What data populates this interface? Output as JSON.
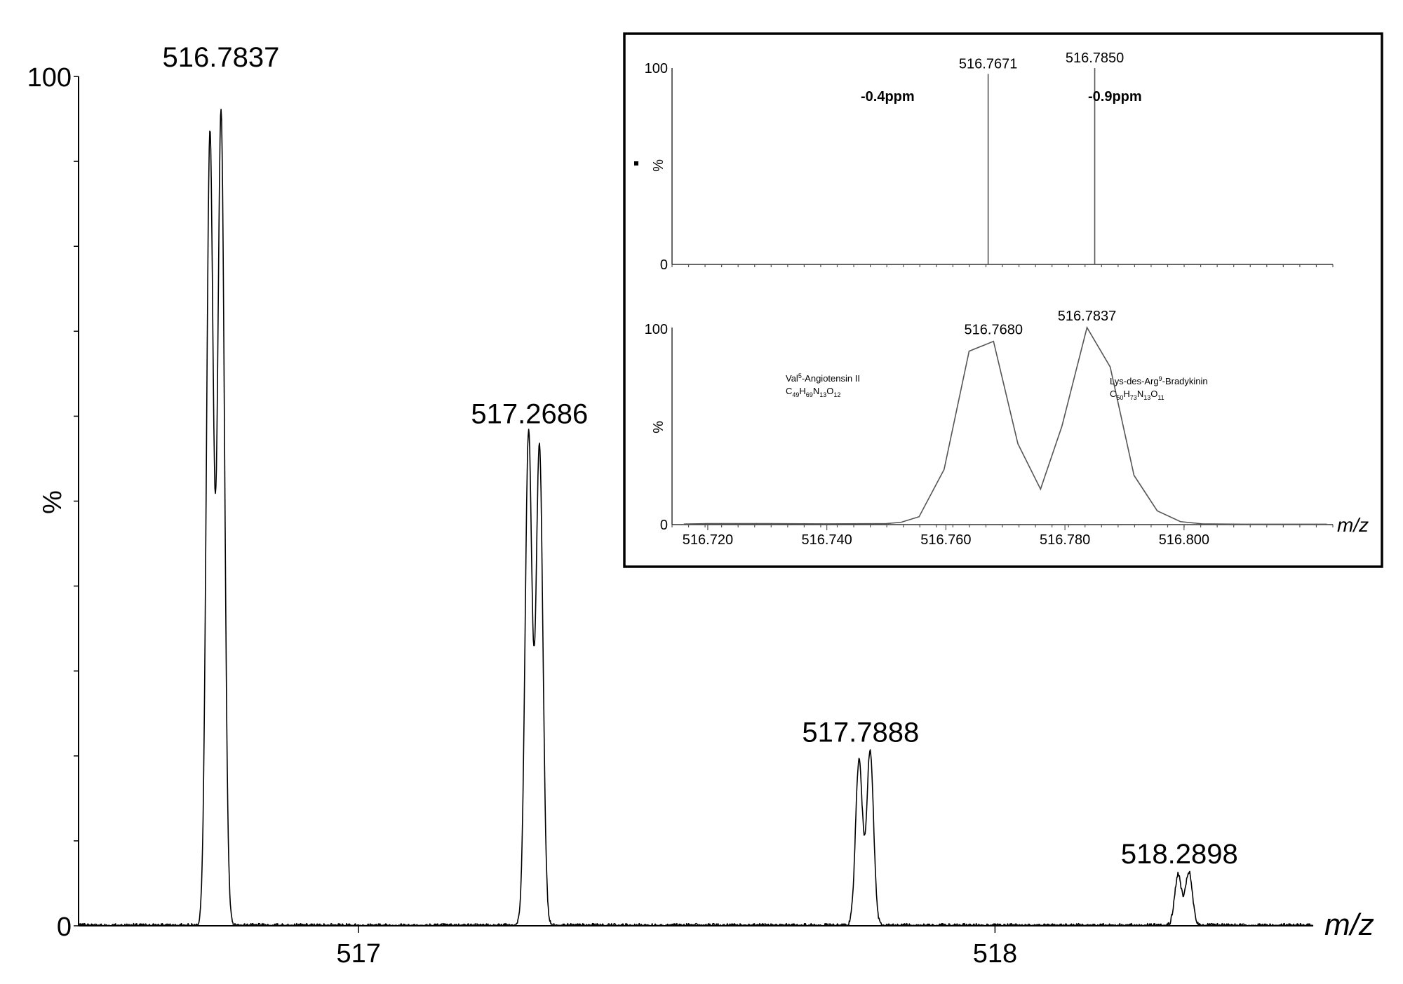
{
  "chart_data": [
    {
      "id": "main",
      "type": "line",
      "xlabel": "m/z",
      "ylabel": "%",
      "xlim": [
        516.56,
        518.5
      ],
      "ylim": [
        0,
        100
      ],
      "y_tick_labels": [
        "0",
        "100"
      ],
      "x_tick_labels": [
        "517",
        "518"
      ],
      "x_ticks": [
        517,
        518
      ],
      "peaks": [
        {
          "label": "516.7837",
          "m": 516.7837,
          "h": 100
        },
        {
          "label": "517.2686",
          "m": 517.2686,
          "h": 58
        },
        {
          "label": "517.7888",
          "m": 517.7888,
          "h": 20.5
        },
        {
          "label": "518.2898",
          "m": 518.2898,
          "h": 6.2
        }
      ],
      "components": [
        {
          "m": 516.7664,
          "h": 93.0
        },
        {
          "m": 516.7839,
          "h": 95.5
        },
        {
          "m": 517.2671,
          "h": 58.0
        },
        {
          "m": 517.2842,
          "h": 56.5
        },
        {
          "m": 517.7863,
          "h": 19.5
        },
        {
          "m": 517.8038,
          "h": 20.5
        },
        {
          "m": 518.2877,
          "h": 6.0
        },
        {
          "m": 518.3047,
          "h": 6.3
        }
      ]
    },
    {
      "id": "inset-top",
      "type": "bar",
      "ylabel": "%",
      "xlim": [
        516.714,
        516.825
      ],
      "ylim": [
        0,
        100
      ],
      "y_tick_labels": [
        "0",
        "100"
      ],
      "sticks": [
        {
          "label": "516.7671",
          "x": 516.7671,
          "y": 97,
          "ppm": "-0.4ppm"
        },
        {
          "label": "516.7850",
          "x": 516.785,
          "y": 100,
          "ppm": "-0.9ppm"
        }
      ]
    },
    {
      "id": "inset-bottom",
      "type": "line",
      "xlabel": "m/z",
      "ylabel": "%",
      "xlim": [
        516.714,
        516.825
      ],
      "ylim": [
        0,
        100
      ],
      "y_tick_labels": [
        "0",
        "100"
      ],
      "x_tick_labels": [
        "516.720",
        "516.740",
        "516.760",
        "516.780",
        "516.800"
      ],
      "x_ticks": [
        516.72,
        516.74,
        516.76,
        516.78,
        516.8
      ],
      "peak_labels": [
        {
          "label": "516.7680",
          "x": 516.768,
          "y": 93
        },
        {
          "label": "516.7837",
          "x": 516.7837,
          "y": 100
        }
      ],
      "points": [
        [
          516.716,
          0.3
        ],
        [
          516.72,
          0.5
        ],
        [
          516.73,
          0.5
        ],
        [
          516.74,
          0.4
        ],
        [
          516.75,
          0.5
        ],
        [
          516.7525,
          1.2
        ],
        [
          516.7555,
          4.0
        ],
        [
          516.7597,
          28.0
        ],
        [
          516.7639,
          88.0
        ],
        [
          516.768,
          93.0
        ],
        [
          516.7721,
          41.0
        ],
        [
          516.7759,
          18.0
        ],
        [
          516.7795,
          50.0
        ],
        [
          516.7837,
          100.0
        ],
        [
          516.7876,
          80.0
        ],
        [
          516.7916,
          25.0
        ],
        [
          516.7955,
          7.0
        ],
        [
          516.7994,
          1.5
        ],
        [
          516.803,
          0.4
        ],
        [
          516.81,
          0.2
        ],
        [
          516.824,
          0.2
        ]
      ],
      "compounds": [
        {
          "name": "Val5-Angiotensin II",
          "formula": "C49H69N13O12"
        },
        {
          "name": "Lys-des-Arg9-Bradykinin",
          "formula": "C50H73N13O11"
        }
      ]
    }
  ]
}
